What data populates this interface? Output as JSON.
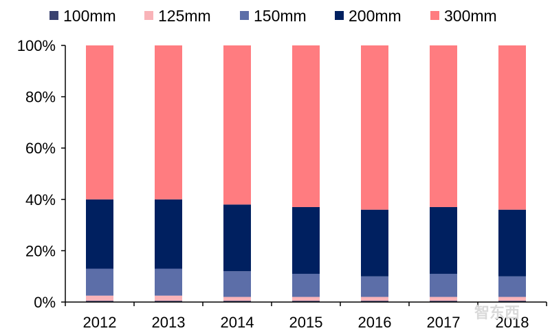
{
  "chart_data": {
    "type": "bar",
    "stacked": true,
    "title": "",
    "xlabel": "",
    "ylabel": "",
    "ylim": [
      0,
      100
    ],
    "y_ticks": [
      "0%",
      "20%",
      "40%",
      "60%",
      "80%",
      "100%"
    ],
    "categories": [
      "2012",
      "2013",
      "2014",
      "2015",
      "2016",
      "2017",
      "2018"
    ],
    "legend_position": "top",
    "series": [
      {
        "name": "100mm",
        "color": "#3a4270",
        "values": [
          0.5,
          0.5,
          0.5,
          0.5,
          0.5,
          0.5,
          0.5
        ]
      },
      {
        "name": "125mm",
        "color": "#f9b3b8",
        "values": [
          2,
          2,
          1.5,
          1.5,
          1.5,
          1.5,
          1.5
        ]
      },
      {
        "name": "150mm",
        "color": "#5c6ea8",
        "values": [
          10.5,
          10.5,
          10,
          9,
          8,
          9,
          8
        ]
      },
      {
        "name": "200mm",
        "color": "#002060",
        "values": [
          27,
          27,
          26,
          26,
          26,
          26,
          26
        ]
      },
      {
        "name": "300mm",
        "color": "#ff7c80",
        "values": [
          60,
          60,
          62,
          63,
          64,
          63,
          64
        ]
      }
    ]
  },
  "watermark_text": "智东西"
}
